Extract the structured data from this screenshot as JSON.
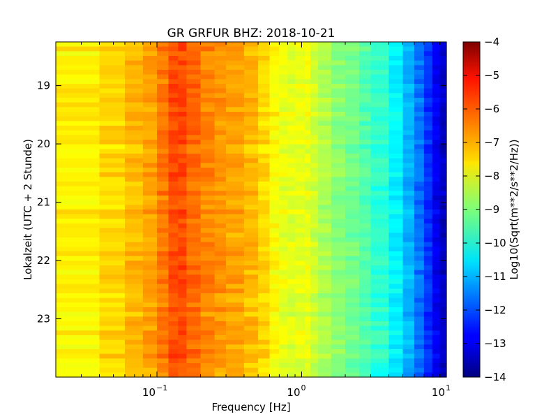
{
  "chart_data": {
    "type": "heatmap",
    "title": "GR GRFUR BHZ: 2018-10-21",
    "xlabel": "Frequency [Hz]",
    "ylabel": "Lokalzeit (UTC + 2 Stunde)",
    "x_scale": "log",
    "xlim": [
      0.02,
      10
    ],
    "ylim": [
      18.25,
      24.0
    ],
    "y_inverted": true,
    "x_ticks": [
      {
        "value": 0.1,
        "base": "10",
        "exp": "−1"
      },
      {
        "value": 1,
        "base": "10",
        "exp": "0"
      },
      {
        "value": 10,
        "base": "10",
        "exp": "1"
      }
    ],
    "y_ticks": [
      {
        "value": 19,
        "label": "19"
      },
      {
        "value": 20,
        "label": "20"
      },
      {
        "value": 21,
        "label": "21"
      },
      {
        "value": 22,
        "label": "22"
      },
      {
        "value": 23,
        "label": "23"
      }
    ],
    "colorbar": {
      "label": "Log10(Sqrt(m**2/s**2/Hz))",
      "colormap": "jet",
      "range": [
        -14,
        -4
      ],
      "ticks": [
        "−4",
        "−5",
        "−6",
        "−7",
        "−8",
        "−9",
        "−10",
        "−11",
        "−12",
        "−13",
        "−14"
      ]
    },
    "frequency_bins_hz": [
      0.02,
      0.04,
      0.06,
      0.08,
      0.1,
      0.12,
      0.14,
      0.16,
      0.2,
      0.25,
      0.3,
      0.4,
      0.5,
      0.6,
      0.7,
      0.8,
      0.9,
      1.05,
      1.15,
      1.3,
      1.6,
      2,
      2.5,
      3,
      4,
      5,
      6,
      7,
      8,
      9,
      10
    ],
    "mean_spectrum_log10": [
      -7.7,
      -7.6,
      -7.2,
      -7.0,
      -6.7,
      -6.2,
      -5.9,
      -6.1,
      -6.5,
      -6.7,
      -6.8,
      -7.0,
      -7.2,
      -7.6,
      -7.9,
      -8.0,
      -8.1,
      -7.9,
      -8.1,
      -8.4,
      -8.8,
      -9.0,
      -9.3,
      -9.6,
      -10.0,
      -10.7,
      -11.3,
      -12.0,
      -12.6,
      -13.2,
      -13.5
    ],
    "time_rows": 72
  }
}
